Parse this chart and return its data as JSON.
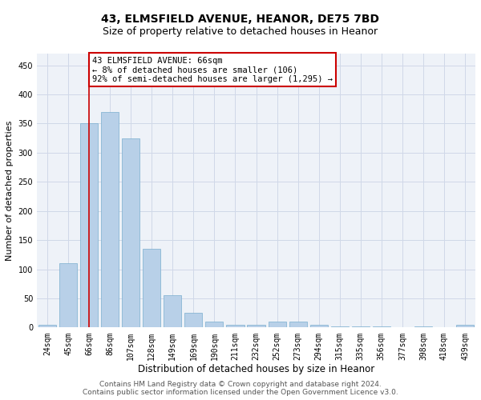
{
  "title": "43, ELMSFIELD AVENUE, HEANOR, DE75 7BD",
  "subtitle": "Size of property relative to detached houses in Heanor",
  "xlabel": "Distribution of detached houses by size in Heanor",
  "ylabel": "Number of detached properties",
  "categories": [
    "24sqm",
    "45sqm",
    "66sqm",
    "86sqm",
    "107sqm",
    "128sqm",
    "149sqm",
    "169sqm",
    "190sqm",
    "211sqm",
    "232sqm",
    "252sqm",
    "273sqm",
    "294sqm",
    "315sqm",
    "335sqm",
    "356sqm",
    "377sqm",
    "398sqm",
    "418sqm",
    "439sqm"
  ],
  "values": [
    5,
    110,
    350,
    370,
    325,
    135,
    55,
    25,
    10,
    5,
    5,
    10,
    10,
    5,
    2,
    2,
    2,
    0,
    2,
    0,
    5
  ],
  "bar_color": "#b8d0e8",
  "bar_edge_color": "#7aaecf",
  "line_x_index": 2,
  "annotation_text": "43 ELMSFIELD AVENUE: 66sqm\n← 8% of detached houses are smaller (106)\n92% of semi-detached houses are larger (1,295) →",
  "annotation_box_color": "#ffffff",
  "annotation_box_edge_color": "#cc0000",
  "vline_color": "#cc0000",
  "grid_color": "#d0d8e8",
  "background_color": "#eef2f8",
  "footer_line1": "Contains HM Land Registry data © Crown copyright and database right 2024.",
  "footer_line2": "Contains public sector information licensed under the Open Government Licence v3.0.",
  "ylim": [
    0,
    470
  ],
  "yticks": [
    0,
    50,
    100,
    150,
    200,
    250,
    300,
    350,
    400,
    450
  ],
  "title_fontsize": 10,
  "subtitle_fontsize": 9,
  "tick_fontsize": 7,
  "ylabel_fontsize": 8,
  "xlabel_fontsize": 8.5,
  "footer_fontsize": 6.5,
  "ann_fontsize": 7.5
}
